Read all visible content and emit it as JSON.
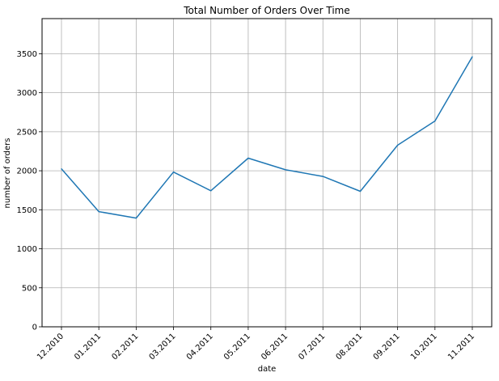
{
  "chart_data": {
    "type": "line",
    "title": "Total Number of Orders Over Time",
    "xlabel": "date",
    "ylabel": "number of orders",
    "categories": [
      "12.2010",
      "01.2011",
      "02.2011",
      "03.2011",
      "04.2011",
      "05.2011",
      "06.2011",
      "07.2011",
      "08.2011",
      "09.2011",
      "10.2011",
      "11.2011"
    ],
    "series": [
      {
        "values": [
          2025,
          1476,
          1393,
          1983,
          1744,
          2162,
          2012,
          1927,
          1737,
          2327,
          2637,
          3462
        ]
      }
    ],
    "ylim": [
      0,
      3950
    ],
    "yticks": [
      0,
      500,
      1000,
      1500,
      2000,
      2500,
      3000,
      3500
    ],
    "ytick_labels": [
      "0",
      "500",
      "1000",
      "1500",
      "2000",
      "2500",
      "3000",
      "3500"
    ],
    "grid": true,
    "line_color": "#1f77b4"
  }
}
